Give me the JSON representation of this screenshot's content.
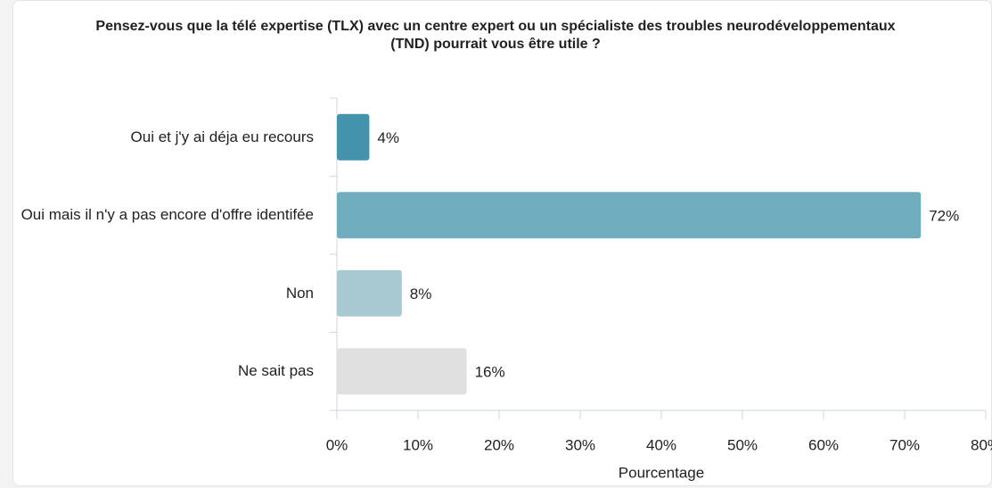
{
  "chart_data": {
    "type": "bar",
    "orientation": "horizontal",
    "title": "Pensez-vous que la télé expertise (TLX) avec un centre expert ou un spécialiste des troubles neurodéveloppementaux (TND) pourrait vous être utile ?",
    "categories": [
      "Oui et j'y ai déja eu recours",
      "Oui mais il n'y a pas encore d'offre identifée",
      "Non",
      "Ne sait pas"
    ],
    "values": [
      4,
      72,
      8,
      16
    ],
    "value_labels": [
      "4%",
      "72%",
      "8%",
      "16%"
    ],
    "colors": [
      "#4393ad",
      "#6fadbf",
      "#a8c9d1",
      "#e0e0e0"
    ],
    "xlabel": "Pourcentage",
    "xlim": [
      0,
      80
    ],
    "xticks": [
      {
        "value": 0,
        "label": "0%"
      },
      {
        "value": 10,
        "label": "10%"
      },
      {
        "value": 20,
        "label": "20%"
      },
      {
        "value": 30,
        "label": "30%"
      },
      {
        "value": 40,
        "label": "40%"
      },
      {
        "value": 50,
        "label": "50%"
      },
      {
        "value": 60,
        "label": "60%"
      },
      {
        "value": 70,
        "label": "70%"
      },
      {
        "value": 80,
        "label": "80%"
      }
    ]
  }
}
